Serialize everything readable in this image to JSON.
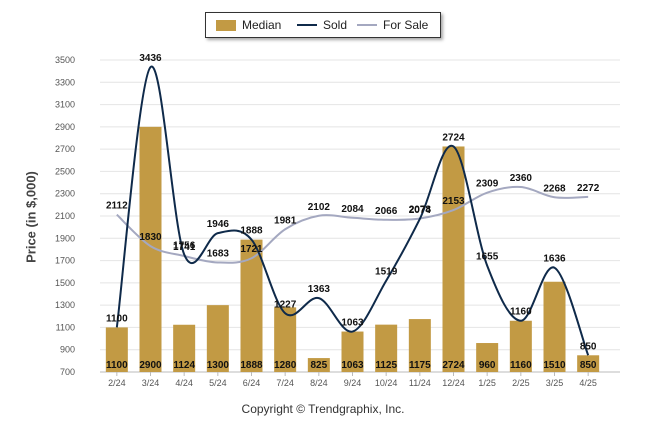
{
  "chart_data": {
    "type": "bar",
    "categories": [
      "2/24",
      "3/24",
      "4/24",
      "5/24",
      "6/24",
      "7/24",
      "8/24",
      "9/24",
      "10/24",
      "11/24",
      "12/24",
      "1/25",
      "2/25",
      "3/25",
      "4/25"
    ],
    "series": [
      {
        "name": "Median",
        "type": "bar",
        "color": "#c29a44",
        "values": [
          1100,
          2900,
          1124,
          1300,
          1888,
          1280,
          825,
          1063,
          1125,
          1175,
          2724,
          960,
          1160,
          1510,
          850
        ]
      },
      {
        "name": "Sold",
        "type": "line",
        "color": "#0f2a4a",
        "values": [
          1100,
          3436,
          1756,
          1946,
          1888,
          1227,
          1363,
          1063,
          1519,
          2074,
          2724,
          1655,
          1160,
          1636,
          850
        ]
      },
      {
        "name": "For Sale",
        "type": "line",
        "color": "#a4a8c0",
        "values": [
          2112,
          1830,
          1741,
          1683,
          1721,
          1981,
          2102,
          2084,
          2066,
          2078,
          2153,
          2309,
          2360,
          2268,
          2272
        ]
      }
    ],
    "ylabel": "Price (in $,000)",
    "ylim": [
      700,
      3500
    ],
    "yticks": [
      700,
      900,
      1100,
      1300,
      1500,
      1700,
      1900,
      2100,
      2300,
      2500,
      2700,
      2900,
      3100,
      3300,
      3500
    ],
    "legend_position": "top-center",
    "grid": true
  },
  "legend": {
    "median": "Median",
    "sold": "Sold",
    "for_sale": "For Sale"
  },
  "footer": {
    "copyright": "Copyright © Trendgraphix, Inc."
  }
}
